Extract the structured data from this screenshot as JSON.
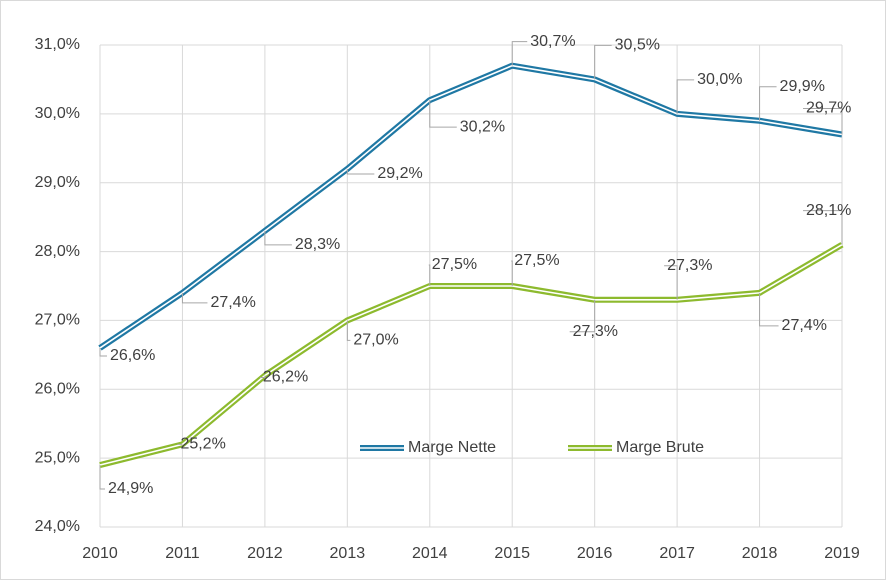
{
  "chart_data": {
    "type": "line",
    "categories": [
      "2010",
      "2011",
      "2012",
      "2013",
      "2014",
      "2015",
      "2016",
      "2017",
      "2018",
      "2019"
    ],
    "series": [
      {
        "name": "Marge Nette",
        "color": "#1f78a4",
        "values": [
          26.6,
          27.4,
          28.3,
          29.2,
          30.2,
          30.7,
          30.5,
          30.0,
          29.9,
          29.7
        ],
        "value_labels": [
          "26,6%",
          "27,4%",
          "28,3%",
          "29,2%",
          "30,2%",
          "30,7%",
          "30,5%",
          "30,0%",
          "29,9%",
          "29,7%"
        ]
      },
      {
        "name": "Marge Brute",
        "color": "#8dba2e",
        "values": [
          24.9,
          25.2,
          26.2,
          27.0,
          27.5,
          27.5,
          27.3,
          27.3,
          27.4,
          28.1
        ],
        "value_labels": [
          "24,9%",
          "25,2%",
          "26,2%",
          "27,0%",
          "27,5%",
          "27,5%",
          "27,3%",
          "27,3%",
          "27,4%",
          "28,1%"
        ]
      }
    ],
    "ylim": [
      24,
      31
    ],
    "yticks": [
      {
        "value": 24,
        "label": "24,0%"
      },
      {
        "value": 25,
        "label": "25,0%"
      },
      {
        "value": 26,
        "label": "26,0%"
      },
      {
        "value": 27,
        "label": "27,0%"
      },
      {
        "value": 28,
        "label": "28,0%"
      },
      {
        "value": 29,
        "label": "29,0%"
      },
      {
        "value": 30,
        "label": "30,0%"
      },
      {
        "value": 31,
        "label": "31,0%"
      }
    ],
    "grid": true,
    "legend": "bottom"
  }
}
